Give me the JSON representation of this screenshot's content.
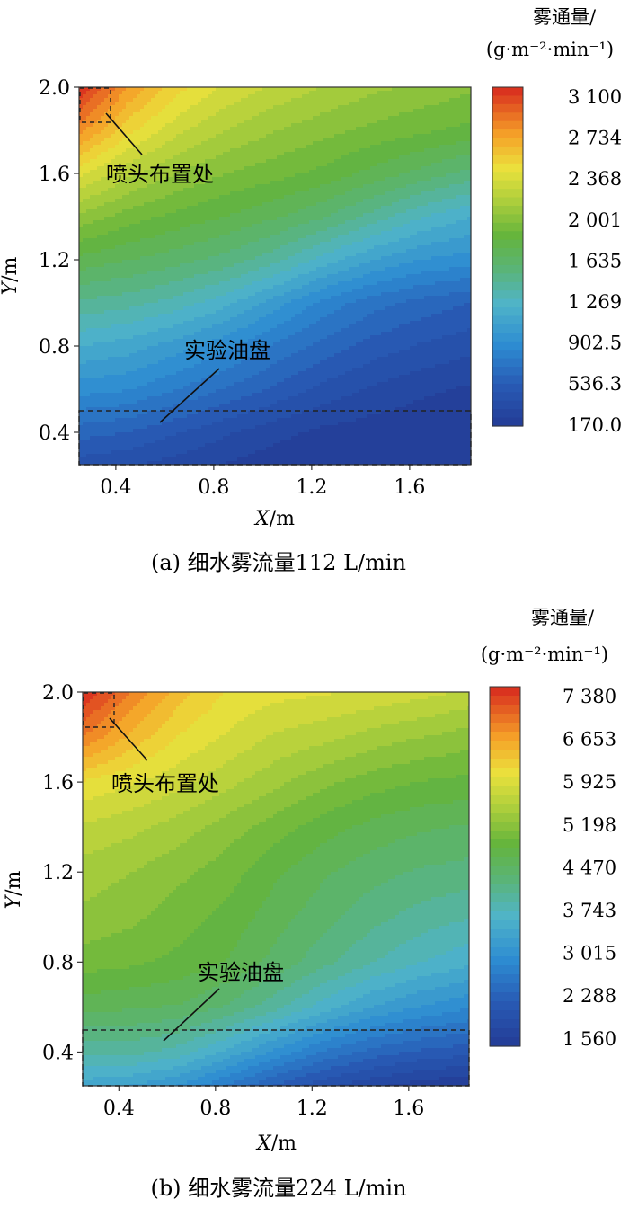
{
  "chart_data": [
    {
      "type": "heatmap",
      "caption": "(a) 细水雾流量112 L/min",
      "colorbar_title": "雾通量/",
      "colorbar_unit": "(g·m⁻²·min⁻¹)",
      "colorbar_ticks": [
        "3 100",
        "2 734",
        "2 368",
        "2 001",
        "1 635",
        "1 269",
        "902.5",
        "536.3",
        "170.0"
      ],
      "value_range": [
        170.0,
        3100
      ],
      "xlabel_var": "X",
      "xlabel_unit": "/m",
      "ylabel_var": "Y",
      "ylabel_unit": "/m",
      "x_ticks": [
        "0.4",
        "0.8",
        "1.2",
        "1.6"
      ],
      "y_ticks": [
        "2.0",
        "1.6",
        "1.2",
        "0.8",
        "0.4"
      ],
      "xlim": [
        0.25,
        1.85
      ],
      "ylim": [
        0.25,
        2.0
      ],
      "x": [
        0.25,
        0.45,
        0.65,
        0.85,
        1.05,
        1.25,
        1.45,
        1.65,
        1.85
      ],
      "y": [
        2.0,
        1.8,
        1.6,
        1.4,
        1.2,
        1.0,
        0.8,
        0.6,
        0.4,
        0.25
      ],
      "z": [
        [
          3100,
          2700,
          2450,
          2300,
          2200,
          2120,
          2050,
          2000,
          1950
        ],
        [
          2750,
          2450,
          2250,
          2120,
          2030,
          1960,
          1900,
          1850,
          1800
        ],
        [
          2350,
          2150,
          2020,
          1930,
          1870,
          1800,
          1700,
          1600,
          1500
        ],
        [
          2000,
          1880,
          1800,
          1730,
          1650,
          1550,
          1400,
          1250,
          1150
        ],
        [
          1700,
          1640,
          1580,
          1500,
          1380,
          1200,
          1050,
          950,
          900
        ],
        [
          1420,
          1380,
          1300,
          1180,
          1000,
          820,
          700,
          620,
          560
        ],
        [
          1150,
          1100,
          1000,
          880,
          740,
          620,
          520,
          450,
          400
        ],
        [
          900,
          860,
          760,
          650,
          540,
          430,
          350,
          290,
          250
        ],
        [
          600,
          560,
          470,
          380,
          300,
          240,
          210,
          190,
          180
        ],
        [
          420,
          380,
          320,
          260,
          210,
          185,
          175,
          172,
          170
        ]
      ],
      "annotations": [
        {
          "text": "喷头布置处",
          "target": "nozzle"
        },
        {
          "text": "实验油盘",
          "target": "tray"
        }
      ]
    },
    {
      "type": "heatmap",
      "caption": "(b) 细水雾流量224 L/min",
      "colorbar_title": "雾通量/",
      "colorbar_unit": "(g·m⁻²·min⁻¹)",
      "colorbar_ticks": [
        "7 380",
        "6 653",
        "5 925",
        "5 198",
        "4 470",
        "3 743",
        "3 015",
        "2 288",
        "1 560"
      ],
      "value_range": [
        1560,
        7380
      ],
      "xlabel_var": "X",
      "xlabel_unit": "/m",
      "ylabel_var": "Y",
      "ylabel_unit": "/m",
      "x_ticks": [
        "0.4",
        "0.8",
        "1.2",
        "1.6"
      ],
      "y_ticks": [
        "2.0",
        "1.6",
        "1.2",
        "0.8",
        "0.4"
      ],
      "xlim": [
        0.25,
        1.85
      ],
      "ylim": [
        0.25,
        2.0
      ],
      "x": [
        0.25,
        0.45,
        0.65,
        0.85,
        1.05,
        1.25,
        1.45,
        1.65,
        1.85
      ],
      "y": [
        2.0,
        1.8,
        1.6,
        1.4,
        1.2,
        1.0,
        0.8,
        0.6,
        0.4,
        0.25
      ],
      "z": [
        [
          7380,
          6800,
          6300,
          6000,
          5900,
          5850,
          5800,
          5700,
          5600
        ],
        [
          6800,
          6350,
          6000,
          5800,
          5600,
          5500,
          5350,
          5250,
          5150
        ],
        [
          6000,
          5850,
          5700,
          5500,
          5300,
          5100,
          4950,
          4850,
          4800
        ],
        [
          5600,
          5500,
          5350,
          5150,
          4950,
          4750,
          4600,
          4500,
          4450
        ],
        [
          5350,
          5250,
          5100,
          4950,
          4700,
          4500,
          4350,
          4250,
          4200
        ],
        [
          5200,
          5100,
          4950,
          4800,
          4550,
          4350,
          4150,
          4000,
          3900
        ],
        [
          4950,
          4900,
          4800,
          4650,
          4400,
          4150,
          3900,
          3700,
          3550
        ],
        [
          4550,
          4500,
          4450,
          4250,
          3950,
          3600,
          3300,
          3100,
          2950
        ],
        [
          3950,
          3950,
          3800,
          3450,
          3050,
          2700,
          2450,
          2300,
          2200
        ],
        [
          3400,
          3300,
          3100,
          2700,
          2300,
          2000,
          1800,
          1650,
          1560
        ]
      ],
      "annotations": [
        {
          "text": "喷头布置处",
          "target": "nozzle"
        },
        {
          "text": "实验油盘",
          "target": "tray"
        }
      ]
    }
  ]
}
